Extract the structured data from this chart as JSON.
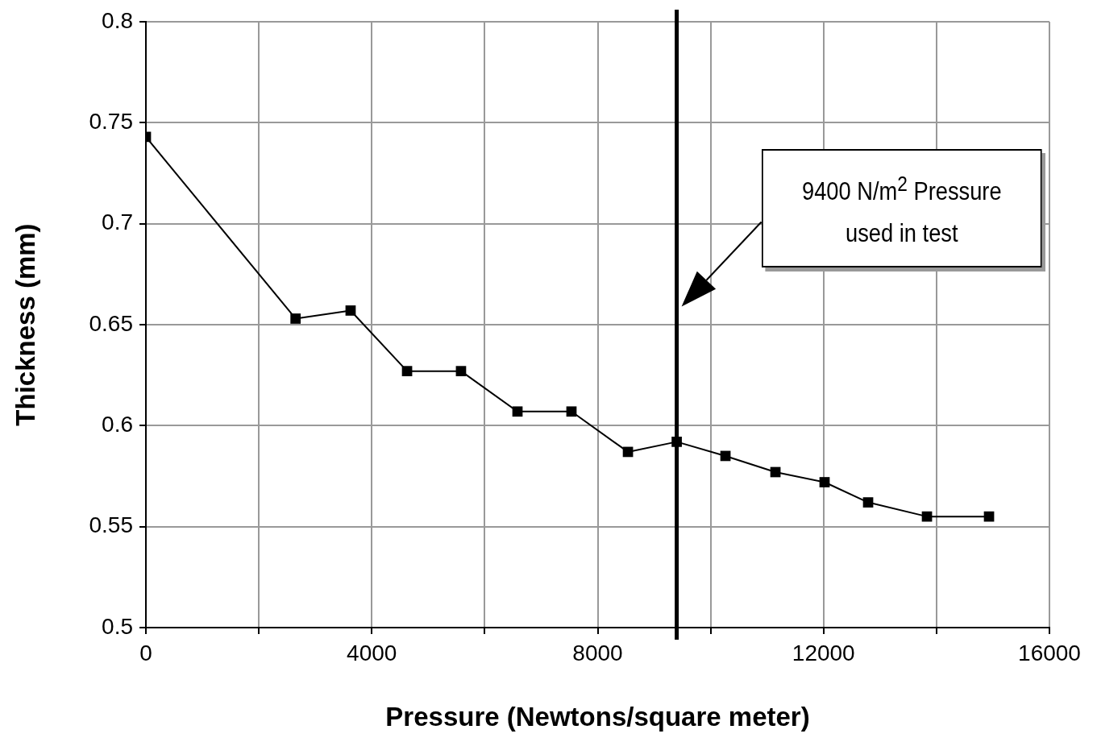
{
  "chart_data": {
    "type": "line",
    "xlabel": "Pressure (Newtons/square meter)",
    "ylabel": "Thickness (mm)",
    "x": [
      0,
      2650,
      3625,
      4625,
      5580,
      6580,
      7536,
      8536,
      9400,
      10263,
      11148,
      12018,
      12789,
      13831,
      14930
    ],
    "series": [
      {
        "color": "#000000",
        "values": [
          0.743,
          0.653,
          0.657,
          0.627,
          0.627,
          0.607,
          0.607,
          0.587,
          0.592,
          0.585,
          0.577,
          0.572,
          0.562,
          0.555,
          0.555
        ]
      }
    ],
    "xlim": [
      0,
      16000
    ],
    "xticks": [
      0,
      {
        "value": 2000,
        "label": null
      },
      4000,
      {
        "value": 6000,
        "label": null
      },
      8000,
      {
        "value": 10000,
        "label": null
      },
      12000,
      {
        "value": 14000,
        "label": null
      },
      16000
    ],
    "ylim": [
      0.5,
      0.8
    ],
    "yticks": [
      0.5,
      0.55,
      0.6,
      0.65,
      0.7,
      0.75,
      0.8
    ],
    "grid": true,
    "marker": "square",
    "line_style": "solid",
    "legend": false,
    "ref_lines": [
      {
        "axis": "x",
        "value": 9400,
        "color": "#000000",
        "line_style": "solid"
      }
    ],
    "annotations": [
      "9400 N/m$^{2}$ Pressure used in test"
    ]
  }
}
